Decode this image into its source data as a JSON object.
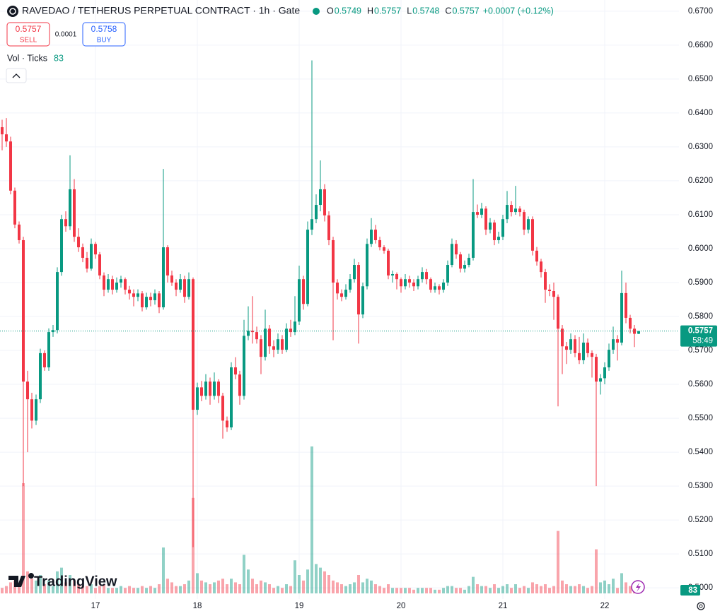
{
  "chart_data": {
    "type": "candlestick",
    "title": "RAVEDAO / TETHERUS PERPETUAL CONTRACT · 1h · Gate",
    "ohlc_labels": [
      "O",
      "H",
      "L",
      "C"
    ],
    "change_label": "+0.0007 (+0.12%)",
    "sell_price": 0.5757,
    "sell_label": "SELL",
    "spread": 0.0001,
    "buy_price": 0.5758,
    "buy_label": "BUY",
    "volume_label": "Vol · Ticks",
    "countdown": "58:49",
    "logo": "TradingView",
    "up_color": "#089981",
    "down_color": "#f23645",
    "grid": true,
    "ylim": [
      0.4967,
      0.6733
    ],
    "yticks": [
      {
        "value": 0.5,
        "label": "0.5000"
      },
      {
        "value": 0.51,
        "label": "0.5100"
      },
      {
        "value": 0.52,
        "label": "0.5200"
      },
      {
        "value": 0.53,
        "label": "0.5300"
      },
      {
        "value": 0.54,
        "label": "0.5400"
      },
      {
        "value": 0.55,
        "label": "0.5500"
      },
      {
        "value": 0.56,
        "label": "0.5600"
      },
      {
        "value": 0.57,
        "label": "0.5700"
      },
      {
        "value": 0.58,
        "label": "0.5800"
      },
      {
        "value": 0.59,
        "label": "0.5900"
      },
      {
        "value": 0.6,
        "label": "0.6000"
      },
      {
        "value": 0.61,
        "label": "0.6100"
      },
      {
        "value": 0.62,
        "label": "0.6200"
      },
      {
        "value": 0.63,
        "label": "0.6300"
      },
      {
        "value": 0.64,
        "label": "0.6400"
      },
      {
        "value": 0.65,
        "label": "0.6500"
      },
      {
        "value": 0.66,
        "label": "0.6600"
      },
      {
        "value": 0.67,
        "label": "0.6700"
      }
    ],
    "categories": [
      null,
      null,
      null,
      null,
      null,
      null,
      null,
      null,
      null,
      null,
      null,
      null,
      null,
      null,
      null,
      null,
      null,
      null,
      null,
      null,
      null,
      null,
      "17",
      null,
      null,
      null,
      null,
      null,
      null,
      null,
      null,
      null,
      null,
      null,
      null,
      null,
      null,
      null,
      null,
      null,
      null,
      null,
      null,
      null,
      null,
      null,
      "18",
      null,
      null,
      null,
      null,
      null,
      null,
      null,
      null,
      null,
      null,
      null,
      null,
      null,
      null,
      null,
      null,
      null,
      null,
      null,
      null,
      null,
      null,
      null,
      "19",
      null,
      null,
      null,
      null,
      null,
      null,
      null,
      null,
      null,
      null,
      null,
      null,
      null,
      null,
      null,
      null,
      null,
      null,
      null,
      null,
      null,
      null,
      null,
      "20",
      null,
      null,
      null,
      null,
      null,
      null,
      null,
      null,
      null,
      null,
      null,
      null,
      null,
      null,
      null,
      null,
      null,
      null,
      null,
      null,
      null,
      null,
      null,
      "21",
      null,
      null,
      null,
      null,
      null,
      null,
      null,
      null,
      null,
      null,
      null,
      null,
      null,
      null,
      null,
      null,
      null,
      null,
      null,
      null,
      null,
      null,
      null,
      "22",
      null,
      null,
      null,
      null,
      null,
      null,
      null,
      null
    ],
    "ohlc": [
      [
        0.6358,
        0.638,
        0.629,
        0.6337
      ],
      [
        0.6337,
        0.6385,
        0.63,
        0.6316
      ],
      [
        0.6316,
        0.633,
        0.616,
        0.6171
      ],
      [
        0.6171,
        0.618,
        0.606,
        0.6071
      ],
      [
        0.6071,
        0.608,
        0.6015,
        0.6025
      ],
      [
        0.6025,
        0.6035,
        0.53,
        0.5608
      ],
      [
        0.5608,
        0.564,
        0.54,
        0.5556
      ],
      [
        0.5556,
        0.5575,
        0.547,
        0.5493
      ],
      [
        0.5493,
        0.557,
        0.548,
        0.5556
      ],
      [
        0.5556,
        0.5705,
        0.5545,
        0.5692
      ],
      [
        0.5692,
        0.57,
        0.564,
        0.565
      ],
      [
        0.565,
        0.5765,
        0.564,
        0.5754
      ],
      [
        0.5754,
        0.5775,
        0.574,
        0.576
      ],
      [
        0.576,
        0.5945,
        0.575,
        0.5931
      ],
      [
        0.5931,
        0.61,
        0.592,
        0.6087
      ],
      [
        0.6087,
        0.611,
        0.605,
        0.6066
      ],
      [
        0.6066,
        0.6275,
        0.6055,
        0.6175
      ],
      [
        0.6175,
        0.6205,
        0.602,
        0.6035
      ],
      [
        0.6035,
        0.606,
        0.599,
        0.6004
      ],
      [
        0.6004,
        0.6015,
        0.596,
        0.5973
      ],
      [
        0.5973,
        0.599,
        0.593,
        0.5941
      ],
      [
        0.5941,
        0.603,
        0.5935,
        0.6014
      ],
      [
        0.6014,
        0.602,
        0.597,
        0.5983
      ],
      [
        0.5983,
        0.599,
        0.591,
        0.5921
      ],
      [
        0.5921,
        0.593,
        0.586,
        0.5879
      ],
      [
        0.5879,
        0.5925,
        0.587,
        0.591
      ],
      [
        0.591,
        0.592,
        0.5865,
        0.5879
      ],
      [
        0.5879,
        0.5915,
        0.587,
        0.59
      ],
      [
        0.59,
        0.592,
        0.5885,
        0.591
      ],
      [
        0.591,
        0.5915,
        0.5865,
        0.5879
      ],
      [
        0.5879,
        0.589,
        0.585,
        0.5868
      ],
      [
        0.5868,
        0.588,
        0.583,
        0.5858
      ],
      [
        0.5858,
        0.588,
        0.5845,
        0.5868
      ],
      [
        0.5868,
        0.5875,
        0.5815,
        0.5827
      ],
      [
        0.5827,
        0.587,
        0.582,
        0.5858
      ],
      [
        0.5858,
        0.587,
        0.583,
        0.5848
      ],
      [
        0.5848,
        0.588,
        0.5835,
        0.5868
      ],
      [
        0.5868,
        0.5875,
        0.581,
        0.5827
      ],
      [
        0.5827,
        0.6235,
        0.582,
        0.6004
      ],
      [
        0.6004,
        0.601,
        0.59,
        0.5921
      ],
      [
        0.5921,
        0.5935,
        0.589,
        0.59
      ],
      [
        0.59,
        0.591,
        0.586,
        0.5879
      ],
      [
        0.5879,
        0.5925,
        0.587,
        0.591
      ],
      [
        0.591,
        0.592,
        0.584,
        0.5858
      ],
      [
        0.5858,
        0.593,
        0.585,
        0.591
      ],
      [
        0.591,
        0.5915,
        0.512,
        0.5525
      ],
      [
        0.5525,
        0.5605,
        0.551,
        0.5591
      ],
      [
        0.5591,
        0.561,
        0.555,
        0.5566
      ],
      [
        0.5566,
        0.563,
        0.5555,
        0.5608
      ],
      [
        0.5608,
        0.562,
        0.554,
        0.5566
      ],
      [
        0.5566,
        0.5635,
        0.5555,
        0.5608
      ],
      [
        0.5608,
        0.5615,
        0.5545,
        0.5566
      ],
      [
        0.5566,
        0.5575,
        0.544,
        0.5493
      ],
      [
        0.5493,
        0.5505,
        0.546,
        0.5473
      ],
      [
        0.5473,
        0.5665,
        0.5465,
        0.565
      ],
      [
        0.565,
        0.568,
        0.5615,
        0.5629
      ],
      [
        0.5629,
        0.564,
        0.554,
        0.5566
      ],
      [
        0.5566,
        0.579,
        0.5555,
        0.5743
      ],
      [
        0.5743,
        0.583,
        0.573,
        0.5758
      ],
      [
        0.5758,
        0.586,
        0.572,
        0.5754
      ],
      [
        0.5754,
        0.577,
        0.572,
        0.5733
      ],
      [
        0.5733,
        0.5745,
        0.563,
        0.5681
      ],
      [
        0.5681,
        0.582,
        0.567,
        0.5764
      ],
      [
        0.5764,
        0.5775,
        0.569,
        0.5712
      ],
      [
        0.5712,
        0.573,
        0.568,
        0.5702
      ],
      [
        0.5702,
        0.575,
        0.569,
        0.5733
      ],
      [
        0.5733,
        0.5745,
        0.569,
        0.5702
      ],
      [
        0.5702,
        0.578,
        0.5695,
        0.5764
      ],
      [
        0.5764,
        0.579,
        0.574,
        0.5754
      ],
      [
        0.5754,
        0.586,
        0.5745,
        0.5785
      ],
      [
        0.5785,
        0.595,
        0.5775,
        0.591
      ],
      [
        0.591,
        0.592,
        0.582,
        0.5837
      ],
      [
        0.5837,
        0.608,
        0.583,
        0.6056
      ],
      [
        0.6056,
        0.6555,
        0.604,
        0.6087
      ],
      [
        0.6087,
        0.616,
        0.6075,
        0.6129
      ],
      [
        0.6129,
        0.626,
        0.611,
        0.6175
      ],
      [
        0.6175,
        0.619,
        0.608,
        0.6098
      ],
      [
        0.6098,
        0.611,
        0.601,
        0.6025
      ],
      [
        0.6025,
        0.6035,
        0.573,
        0.59
      ],
      [
        0.59,
        0.591,
        0.585,
        0.5868
      ],
      [
        0.5868,
        0.588,
        0.5845,
        0.5858
      ],
      [
        0.5858,
        0.5895,
        0.585,
        0.5879
      ],
      [
        0.5879,
        0.5925,
        0.587,
        0.591
      ],
      [
        0.591,
        0.597,
        0.59,
        0.5952
      ],
      [
        0.5952,
        0.596,
        0.572,
        0.5806
      ],
      [
        0.5806,
        0.59,
        0.5795,
        0.5889
      ],
      [
        0.5889,
        0.603,
        0.588,
        0.6014
      ],
      [
        0.6014,
        0.609,
        0.6005,
        0.6056
      ],
      [
        0.6056,
        0.607,
        0.6015,
        0.6025
      ],
      [
        0.6025,
        0.6035,
        0.5995,
        0.6004
      ],
      [
        0.6004,
        0.601,
        0.5985,
        0.5994
      ],
      [
        0.5994,
        0.6,
        0.591,
        0.5921
      ],
      [
        0.5921,
        0.5935,
        0.59,
        0.5925
      ],
      [
        0.5925,
        0.593,
        0.588,
        0.591
      ],
      [
        0.591,
        0.5915,
        0.587,
        0.5889
      ],
      [
        0.5889,
        0.5925,
        0.588,
        0.591
      ],
      [
        0.591,
        0.592,
        0.5885,
        0.59
      ],
      [
        0.59,
        0.591,
        0.5875,
        0.5889
      ],
      [
        0.5889,
        0.592,
        0.588,
        0.591
      ],
      [
        0.591,
        0.5945,
        0.59,
        0.5931
      ],
      [
        0.5931,
        0.594,
        0.5895,
        0.591
      ],
      [
        0.591,
        0.5915,
        0.587,
        0.5879
      ],
      [
        0.5879,
        0.59,
        0.587,
        0.5889
      ],
      [
        0.5889,
        0.5895,
        0.5865,
        0.5879
      ],
      [
        0.5879,
        0.591,
        0.587,
        0.59
      ],
      [
        0.59,
        0.5965,
        0.589,
        0.5952
      ],
      [
        0.5952,
        0.603,
        0.5945,
        0.6014
      ],
      [
        0.6014,
        0.6025,
        0.597,
        0.5983
      ],
      [
        0.5983,
        0.599,
        0.593,
        0.5941
      ],
      [
        0.5941,
        0.5965,
        0.593,
        0.5952
      ],
      [
        0.5952,
        0.5985,
        0.5945,
        0.5973
      ],
      [
        0.5973,
        0.6205,
        0.5965,
        0.6108
      ],
      [
        0.6108,
        0.613,
        0.609,
        0.61
      ],
      [
        0.61,
        0.6135,
        0.609,
        0.6118
      ],
      [
        0.6118,
        0.6125,
        0.604,
        0.6056
      ],
      [
        0.6056,
        0.609,
        0.6045,
        0.6077
      ],
      [
        0.6077,
        0.6085,
        0.601,
        0.6025
      ],
      [
        0.6025,
        0.605,
        0.6015,
        0.6035
      ],
      [
        0.6035,
        0.61,
        0.6025,
        0.6087
      ],
      [
        0.6087,
        0.617,
        0.6075,
        0.6129
      ],
      [
        0.6129,
        0.614,
        0.6095,
        0.6108
      ],
      [
        0.6108,
        0.6185,
        0.61,
        0.6118
      ],
      [
        0.6118,
        0.6125,
        0.6095,
        0.6108
      ],
      [
        0.6108,
        0.6115,
        0.604,
        0.6056
      ],
      [
        0.6056,
        0.6095,
        0.6045,
        0.6087
      ],
      [
        0.6087,
        0.6095,
        0.598,
        0.5994
      ],
      [
        0.5994,
        0.6005,
        0.595,
        0.5962
      ],
      [
        0.5962,
        0.597,
        0.5915,
        0.5931
      ],
      [
        0.5931,
        0.594,
        0.584,
        0.5879
      ],
      [
        0.5879,
        0.5895,
        0.586,
        0.5875
      ],
      [
        0.5875,
        0.59,
        0.579,
        0.5858
      ],
      [
        0.5858,
        0.5865,
        0.5535,
        0.5764
      ],
      [
        0.5764,
        0.5775,
        0.563,
        0.5712
      ],
      [
        0.5712,
        0.5725,
        0.566,
        0.5702
      ],
      [
        0.5702,
        0.575,
        0.569,
        0.5733
      ],
      [
        0.5733,
        0.5745,
        0.568,
        0.5692
      ],
      [
        0.5692,
        0.574,
        0.566,
        0.5671
      ],
      [
        0.5671,
        0.575,
        0.566,
        0.5723
      ],
      [
        0.5723,
        0.5735,
        0.568,
        0.5692
      ],
      [
        0.5692,
        0.57,
        0.562,
        0.5681
      ],
      [
        0.5681,
        0.569,
        0.53,
        0.5608
      ],
      [
        0.5608,
        0.563,
        0.557,
        0.5618
      ],
      [
        0.5618,
        0.5665,
        0.56,
        0.565
      ],
      [
        0.565,
        0.572,
        0.564,
        0.5702
      ],
      [
        0.5702,
        0.577,
        0.569,
        0.5733
      ],
      [
        0.5733,
        0.5745,
        0.567,
        0.5723
      ],
      [
        0.5723,
        0.5935,
        0.5715,
        0.5869
      ],
      [
        0.5869,
        0.59,
        0.578,
        0.5796
      ],
      [
        0.5796,
        0.5805,
        0.575,
        0.5764
      ],
      [
        0.5764,
        0.5775,
        0.571,
        0.5749
      ],
      [
        0.5749,
        0.5757,
        0.5748,
        0.5757
      ]
    ],
    "volume": [
      150,
      200,
      300,
      350,
      250,
      3000,
      600,
      400,
      350,
      500,
      250,
      350,
      200,
      600,
      700,
      300,
      500,
      350,
      250,
      200,
      200,
      250,
      150,
      200,
      250,
      150,
      150,
      150,
      200,
      150,
      200,
      150,
      150,
      200,
      150,
      200,
      150,
      250,
      1250,
      400,
      300,
      200,
      200,
      250,
      350,
      2600,
      550,
      350,
      300,
      250,
      300,
      350,
      400,
      250,
      400,
      300,
      250,
      1050,
      650,
      400,
      250,
      350,
      300,
      250,
      150,
      200,
      150,
      250,
      200,
      900,
      500,
      350,
      650,
      4000,
      800,
      700,
      600,
      500,
      350,
      300,
      250,
      200,
      250,
      300,
      500,
      300,
      400,
      350,
      250,
      200,
      150,
      250,
      150,
      150,
      150,
      150,
      150,
      100,
      150,
      150,
      150,
      150,
      100,
      100,
      150,
      200,
      200,
      150,
      150,
      100,
      200,
      450,
      250,
      200,
      200,
      150,
      250,
      150,
      200,
      250,
      150,
      250,
      150,
      200,
      150,
      300,
      250,
      200,
      250,
      150,
      200,
      1700,
      350,
      250,
      200,
      200,
      250,
      200,
      150,
      200,
      1200,
      300,
      350,
      250,
      400,
      150,
      550,
      300,
      200,
      150,
      83
    ]
  }
}
